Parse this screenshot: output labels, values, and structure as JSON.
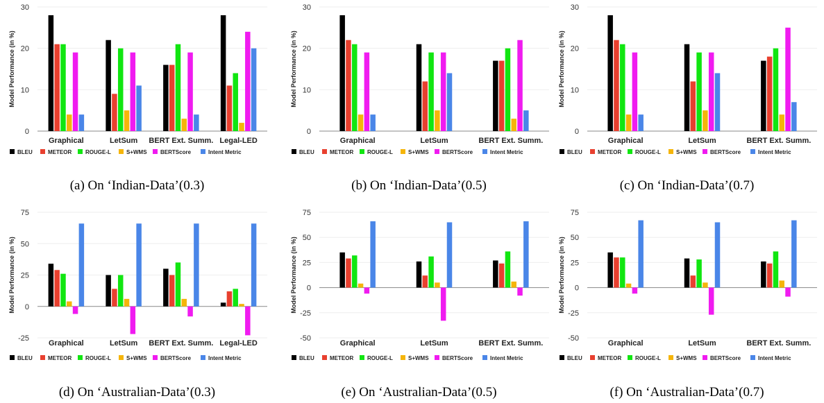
{
  "legend": [
    {
      "name": "BLEU",
      "color": "#000000"
    },
    {
      "name": "METEOR",
      "color": "#e8402f"
    },
    {
      "name": "ROUGE-L",
      "color": "#11e611"
    },
    {
      "name": "S+WMS",
      "color": "#f5b50a"
    },
    {
      "name": "BERTScore",
      "color": "#f01bf0"
    },
    {
      "name": "Intent Metric",
      "color": "#4a86e8"
    }
  ],
  "chart_data": [
    {
      "type": "bar",
      "caption": "(a) On ‘Indian-Data’(0.3)",
      "ylabel": "Model Performance (in %)",
      "ylim": [
        0,
        30
      ],
      "yticks": [
        0,
        10,
        20,
        30
      ],
      "categories": [
        "Graphical",
        "LetSum",
        "BERT Ext. Summ.",
        "Legal-LED"
      ],
      "series": [
        {
          "name": "BLEU",
          "values": [
            28,
            22,
            16,
            28
          ]
        },
        {
          "name": "METEOR",
          "values": [
            21,
            9,
            16,
            11
          ]
        },
        {
          "name": "ROUGE-L",
          "values": [
            21,
            20,
            21,
            14
          ]
        },
        {
          "name": "S+WMS",
          "values": [
            4,
            5,
            3,
            2
          ]
        },
        {
          "name": "BERTScore",
          "values": [
            19,
            19,
            19,
            24
          ]
        },
        {
          "name": "Intent Metric",
          "values": [
            4,
            11,
            4,
            20
          ]
        }
      ]
    },
    {
      "type": "bar",
      "caption": "(b) On ‘Indian-Data’(0.5)",
      "ylabel": "Model Performance (in %)",
      "ylim": [
        0,
        30
      ],
      "yticks": [
        0,
        10,
        20,
        30
      ],
      "categories": [
        "Graphical",
        "LetSum",
        "BERT Ext. Summ."
      ],
      "series": [
        {
          "name": "BLEU",
          "values": [
            28,
            21,
            17
          ]
        },
        {
          "name": "METEOR",
          "values": [
            22,
            12,
            17
          ]
        },
        {
          "name": "ROUGE-L",
          "values": [
            21,
            19,
            20
          ]
        },
        {
          "name": "S+WMS",
          "values": [
            4,
            5,
            3
          ]
        },
        {
          "name": "BERTScore",
          "values": [
            19,
            19,
            22
          ]
        },
        {
          "name": "Intent Metric",
          "values": [
            4,
            14,
            5
          ]
        }
      ]
    },
    {
      "type": "bar",
      "caption": "(c) On ‘Indian-Data’(0.7)",
      "ylabel": "Model Performance (in %)",
      "ylim": [
        0,
        30
      ],
      "yticks": [
        0,
        10,
        20,
        30
      ],
      "categories": [
        "Graphical",
        "LetSum",
        "BERT Ext. Summ."
      ],
      "series": [
        {
          "name": "BLEU",
          "values": [
            28,
            21,
            17
          ]
        },
        {
          "name": "METEOR",
          "values": [
            22,
            12,
            18
          ]
        },
        {
          "name": "ROUGE-L",
          "values": [
            21,
            19,
            20
          ]
        },
        {
          "name": "S+WMS",
          "values": [
            4,
            5,
            4
          ]
        },
        {
          "name": "BERTScore",
          "values": [
            19,
            19,
            25
          ]
        },
        {
          "name": "Intent Metric",
          "values": [
            4,
            14,
            7
          ]
        }
      ]
    },
    {
      "type": "bar",
      "caption": "(d) On ‘Australian-Data’(0.3)",
      "ylabel": "Model Performance (in %)",
      "ylim": [
        -25,
        75
      ],
      "yticks": [
        -25,
        0,
        25,
        50,
        75
      ],
      "categories": [
        "Graphical",
        "LetSum",
        "BERT Ext. Summ.",
        "Legal-LED"
      ],
      "series": [
        {
          "name": "BLEU",
          "values": [
            34,
            25,
            30,
            3
          ]
        },
        {
          "name": "METEOR",
          "values": [
            29,
            14,
            25,
            12
          ]
        },
        {
          "name": "ROUGE-L",
          "values": [
            26,
            25,
            35,
            14
          ]
        },
        {
          "name": "S+WMS",
          "values": [
            4,
            6,
            6,
            2
          ]
        },
        {
          "name": "BERTScore",
          "values": [
            -6,
            -22,
            -8,
            -23
          ]
        },
        {
          "name": "Intent Metric",
          "values": [
            66,
            66,
            66,
            66
          ]
        }
      ]
    },
    {
      "type": "bar",
      "caption": "(e) On ‘Australian-Data’(0.5)",
      "ylabel": "Model Performance (in %)",
      "ylim": [
        -50,
        75
      ],
      "yticks": [
        -50,
        -25,
        0,
        25,
        50,
        75
      ],
      "categories": [
        "Graphical",
        "LetSum",
        "BERT Ext. Summ."
      ],
      "series": [
        {
          "name": "BLEU",
          "values": [
            35,
            26,
            27
          ]
        },
        {
          "name": "METEOR",
          "values": [
            29,
            12,
            24
          ]
        },
        {
          "name": "ROUGE-L",
          "values": [
            32,
            31,
            36
          ]
        },
        {
          "name": "S+WMS",
          "values": [
            4,
            5,
            6
          ]
        },
        {
          "name": "BERTScore",
          "values": [
            -6,
            -33,
            -8
          ]
        },
        {
          "name": "Intent Metric",
          "values": [
            66,
            65,
            66
          ]
        }
      ]
    },
    {
      "type": "bar",
      "caption": "(f) On ‘Australian-Data’(0.7)",
      "ylabel": "Model Performance (in %)",
      "ylim": [
        -50,
        75
      ],
      "yticks": [
        -50,
        -25,
        0,
        25,
        50,
        75
      ],
      "categories": [
        "Graphical",
        "LetSum",
        "BERT Ext. Summ."
      ],
      "series": [
        {
          "name": "BLEU",
          "values": [
            35,
            29,
            26
          ]
        },
        {
          "name": "METEOR",
          "values": [
            30,
            12,
            24
          ]
        },
        {
          "name": "ROUGE-L",
          "values": [
            30,
            28,
            36
          ]
        },
        {
          "name": "S+WMS",
          "values": [
            4,
            5,
            7
          ]
        },
        {
          "name": "BERTScore",
          "values": [
            -6,
            -27,
            -9
          ]
        },
        {
          "name": "Intent Metric",
          "values": [
            67,
            65,
            67
          ]
        }
      ]
    }
  ]
}
